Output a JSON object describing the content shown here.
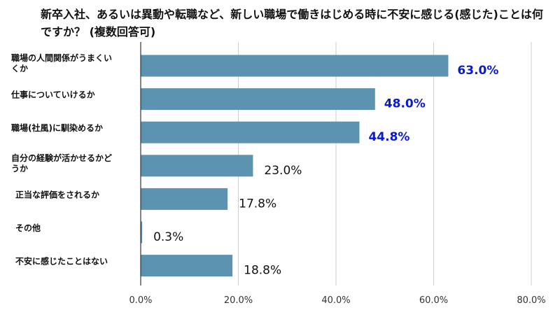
{
  "chart_data": {
    "type": "bar",
    "orientation": "horizontal",
    "title": "新卒入社、あるいは異動や転職など、新しい職場で働きはじめる時に不安に感じる(感じた)ことは何ですか？ (複数回答可)",
    "categories": [
      "職場の人間関係がうまくいくか",
      "仕事についていけるか",
      "職場(社風)に馴染めるか",
      "自分の経験が活かせるかどうか",
      "正当な評価をされるか",
      "その他",
      "不安に感じたことはない"
    ],
    "values": [
      63.0,
      48.0,
      44.8,
      23.0,
      17.8,
      0.3,
      18.8
    ],
    "value_labels": [
      "63.0%",
      "48.0%",
      "44.8%",
      "23.0%",
      "17.8%",
      "0.3%",
      "18.8%"
    ],
    "highlighted": [
      true,
      true,
      true,
      false,
      false,
      false,
      false
    ],
    "xlim": [
      0,
      80
    ],
    "xticks": [
      0,
      20,
      40,
      60,
      80
    ],
    "xtick_labels": [
      "0.0%",
      "20.0%",
      "40.0%",
      "60.0%",
      "80.0%"
    ],
    "grid": true,
    "legend": "none",
    "xlabel": "",
    "ylabel": ""
  },
  "colors": {
    "bar": "#5b93b0",
    "highlight_label": "#0a1ad0",
    "label": "#111111",
    "grid": "#cfcfcf",
    "axis": "#333333"
  }
}
